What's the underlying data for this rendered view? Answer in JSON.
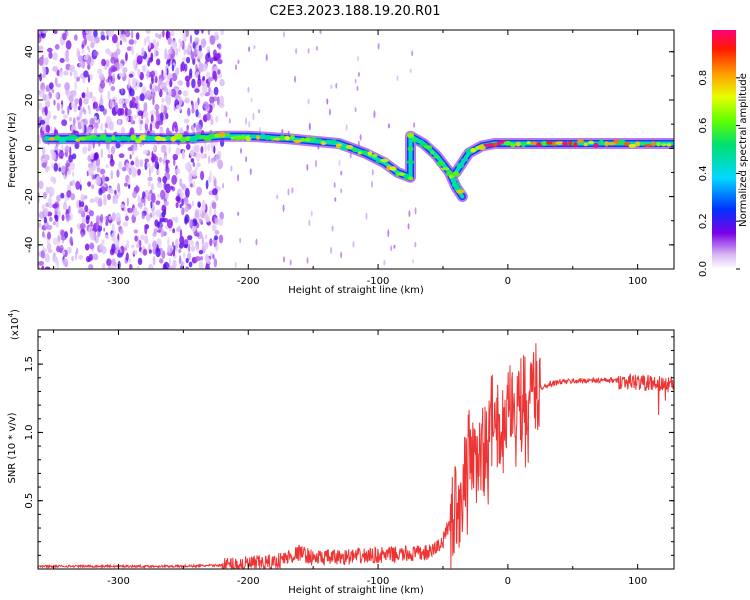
{
  "title": "C2E3.2023.188.19.20.R01",
  "chart_data": [
    {
      "type": "heatmap",
      "xlabel": "Height of straight line (km)",
      "ylabel": "Frequency (Hz)",
      "xlim": [
        -362,
        128
      ],
      "ylim": [
        -50,
        49
      ],
      "xticks": [
        "-300",
        "-200",
        "-100",
        "0",
        "100"
      ],
      "yticks": [
        "-40",
        "-20",
        "0",
        "20",
        "40"
      ],
      "colorbar": {
        "label": "Normalized spectral amplitude",
        "range": [
          0,
          1
        ],
        "ticks": [
          "0.0",
          "0.2",
          "0.4",
          "0.6",
          "0.8"
        ]
      },
      "ridge": {
        "x": [
          -355,
          -300,
          -250,
          -220,
          -200,
          -170,
          -150,
          -130,
          -110,
          -95,
          -85,
          -75,
          -75,
          -65,
          -55,
          -45,
          -40,
          -35,
          -40,
          -30,
          -20,
          -10,
          0,
          20,
          60,
          100,
          128
        ],
        "y": [
          4,
          4,
          4,
          5,
          5,
          4,
          3,
          2,
          -2,
          -6,
          -10,
          -12,
          5,
          2,
          -3,
          -10,
          -16,
          -20,
          -10,
          -2,
          1,
          2,
          2,
          2,
          2,
          2,
          2
        ]
      },
      "noise_xrange": [
        -362,
        -220
      ]
    },
    {
      "type": "line",
      "xlabel": "Height of straight line (km)",
      "ylabel": "SNR (10 * v/v)",
      "yscale_label": "(x10",
      "yscale_exp": "4",
      "yscale_close": ")",
      "xlim": [
        -362,
        128
      ],
      "ylim": [
        0,
        1.75
      ],
      "xticks": [
        "-300",
        "-200",
        "-100",
        "0",
        "100"
      ],
      "yticks": [
        "0.5",
        "1.0",
        "1.5"
      ],
      "color": "#ee3333",
      "x": [
        -362,
        -300,
        -250,
        -210,
        -180,
        -160,
        -150,
        -120,
        -100,
        -75,
        -60,
        -50,
        -45,
        -40,
        -35,
        -30,
        -25,
        -22,
        -18,
        -15,
        -10,
        -5,
        0,
        5,
        10,
        15,
        20,
        30,
        40,
        60,
        80,
        100,
        110,
        120,
        128
      ],
      "y": [
        0.02,
        0.02,
        0.02,
        0.03,
        0.05,
        0.12,
        0.08,
        0.09,
        0.1,
        0.11,
        0.12,
        0.2,
        0.35,
        0.45,
        0.55,
        0.85,
        0.7,
        0.95,
        0.85,
        1.05,
        1.1,
        1.0,
        1.1,
        1.25,
        1.2,
        1.25,
        1.3,
        1.35,
        1.37,
        1.38,
        1.38,
        1.37,
        1.36,
        1.35,
        1.35
      ]
    }
  ]
}
